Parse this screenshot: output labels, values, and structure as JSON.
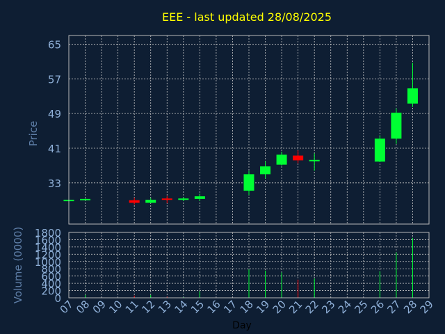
{
  "chart_data": {
    "type": "candlestick",
    "title": "EEE - last updated 28/08/2025",
    "xlabel": "Day",
    "price_ylabel": "Price",
    "volume_ylabel": "Volume (0000)",
    "x_tick_labels": [
      "07",
      "08",
      "09",
      "10",
      "11",
      "12",
      "13",
      "14",
      "15",
      "16",
      "17",
      "18",
      "19",
      "20",
      "21",
      "22",
      "23",
      "24",
      "25",
      "26",
      "27",
      "28",
      "29"
    ],
    "price_ylim": [
      23.5,
      67
    ],
    "price_ticks": [
      65,
      57,
      49,
      41,
      33
    ],
    "volume_ylim": [
      0,
      1800
    ],
    "volume_ticks": [
      1800,
      1600,
      1400,
      1200,
      1000,
      800,
      600,
      400,
      200,
      0
    ],
    "candles": [
      {
        "day": "07",
        "open": 28.9,
        "high": 29.3,
        "low": 28.5,
        "close": 29.1,
        "volume": 20
      },
      {
        "day": "08",
        "open": 29.1,
        "high": 29.4,
        "low": 29.0,
        "close": 29.3,
        "volume": 80
      },
      {
        "day": "11",
        "open": 29.0,
        "high": 29.6,
        "low": 28.0,
        "close": 28.4,
        "volume": 60
      },
      {
        "day": "12",
        "open": 28.4,
        "high": 29.5,
        "low": 28.3,
        "close": 29.1,
        "volume": 80
      },
      {
        "day": "13",
        "open": 29.4,
        "high": 30.0,
        "low": 28.3,
        "close": 29.1,
        "volume": 30
      },
      {
        "day": "14",
        "open": 29.1,
        "high": 29.7,
        "low": 28.8,
        "close": 29.4,
        "volume": 20
      },
      {
        "day": "15",
        "open": 29.3,
        "high": 30.5,
        "low": 28.8,
        "close": 29.9,
        "volume": 180
      },
      {
        "day": "18",
        "open": 31.2,
        "high": 35.8,
        "low": 30.2,
        "close": 35.0,
        "volume": 780
      },
      {
        "day": "19",
        "open": 35.0,
        "high": 38.0,
        "low": 34.0,
        "close": 36.8,
        "volume": 750
      },
      {
        "day": "20",
        "open": 37.2,
        "high": 40.2,
        "low": 37.0,
        "close": 39.5,
        "volume": 700
      },
      {
        "day": "21",
        "open": 39.3,
        "high": 40.5,
        "low": 37.5,
        "close": 38.2,
        "volume": 500
      },
      {
        "day": "22",
        "open": 38.2,
        "high": 39.8,
        "low": 35.8,
        "close": 38.3,
        "volume": 530
      },
      {
        "day": "26",
        "open": 37.9,
        "high": 44.0,
        "low": 37.8,
        "close": 43.2,
        "volume": 730
      },
      {
        "day": "27",
        "open": 43.2,
        "high": 50.2,
        "low": 42.0,
        "close": 49.2,
        "volume": 1250
      },
      {
        "day": "28",
        "open": 51.3,
        "high": 60.7,
        "low": 50.5,
        "close": 54.8,
        "volume": 1650
      }
    ],
    "colors": {
      "background": "#0e1e33",
      "up": "#00ff33",
      "down": "#ff0000",
      "title": "#ffff00",
      "tick_labels": "#8fb0d8",
      "axis_labels": "#5f7fa8",
      "grid": "#c8c8c8"
    },
    "grid": true
  }
}
